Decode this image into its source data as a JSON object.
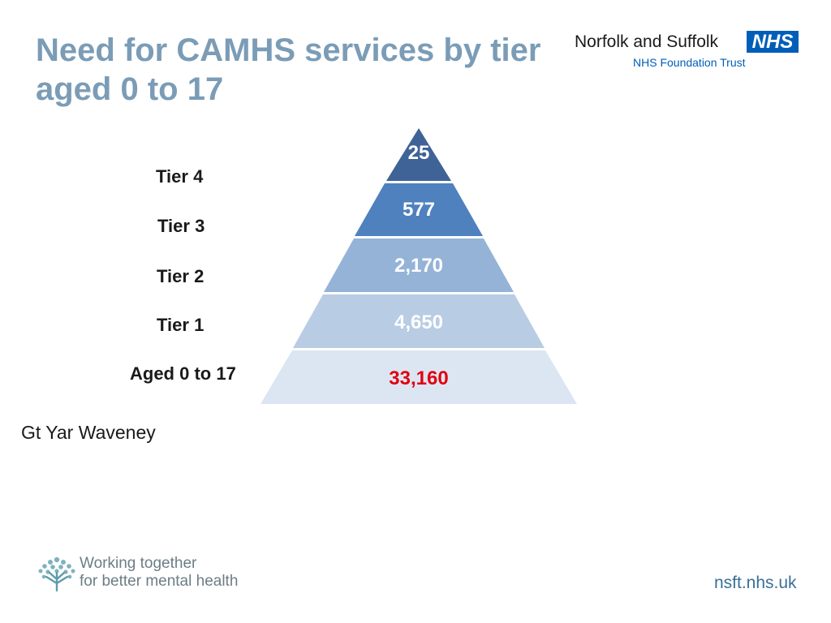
{
  "title": {
    "line1": "Need for CAMHS services by tier",
    "line2": "aged 0 to 17"
  },
  "logo": {
    "trust_name": "Norfolk and Suffolk",
    "badge": "NHS",
    "subtitle": "NHS Foundation Trust"
  },
  "tiers": [
    {
      "label": "Tier 4",
      "value": "25",
      "color": "#3f6397",
      "text_color": "#ffffff"
    },
    {
      "label": "Tier 3",
      "value": "577",
      "color": "#4e81bd",
      "text_color": "#ffffff"
    },
    {
      "label": "Tier 2",
      "value": "2,170",
      "color": "#95b3d7",
      "text_color": "#ffffff"
    },
    {
      "label": "Tier 1",
      "value": "4,650",
      "color": "#b8cce4",
      "text_color": "#ffffff"
    },
    {
      "label": "Aged 0 to 17",
      "value": "33,160",
      "color": "#dce6f2",
      "text_color": "#e3000f"
    }
  ],
  "place": "Gt Yar Waveney",
  "footer": {
    "tagline_line1": "Working together",
    "tagline_line2": "for better mental health",
    "website": "nsft.nhs.uk"
  },
  "colors": {
    "title": "#7b9cb6",
    "nhs_blue": "#005eb8",
    "accent_red": "#e3000f"
  }
}
